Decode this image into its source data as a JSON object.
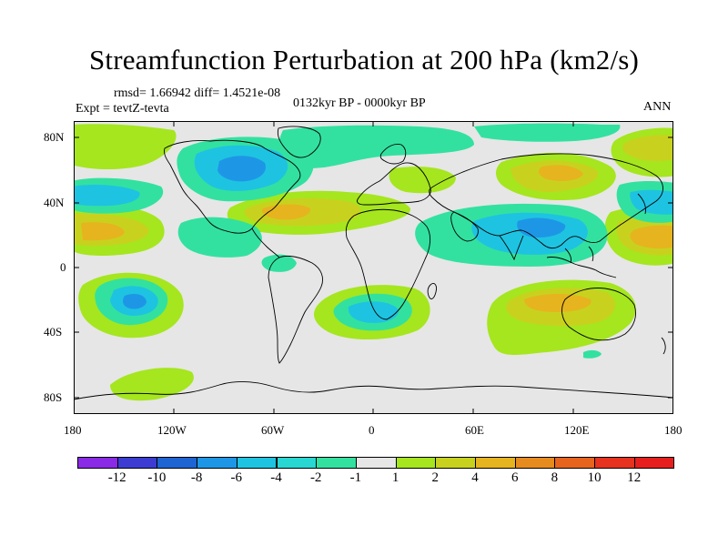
{
  "title": "Streamfunction Perturbation at 200 hPa (km2/s)",
  "stats": "rmsd= 1.66942 diff= 1.4521e-08",
  "experiment": "Expt = tevtZ-tevta",
  "period": "0132kyr BP - 0000kyr BP",
  "season": "ANN",
  "lat_labels": [
    "80N",
    "40N",
    "0",
    "40S",
    "80S"
  ],
  "lon_labels": [
    "180",
    "120W",
    "60W",
    "0",
    "60E",
    "120E",
    "180"
  ],
  "colorbar": {
    "labels": [
      "-12",
      "-10",
      "-8",
      "-6",
      "-4",
      "-2",
      "-1",
      "1",
      "2",
      "4",
      "6",
      "8",
      "10",
      "12"
    ],
    "colors": [
      "#8a2ae6",
      "#3c3cd2",
      "#1e64d2",
      "#1e96e6",
      "#1ec3e1",
      "#28d7d2",
      "#32e1a0",
      "#e6e6e6",
      "#a5e61e",
      "#c8d21e",
      "#e6b41e",
      "#e68c1e",
      "#e6641e",
      "#e6321e",
      "#e61e1e"
    ]
  },
  "field_colors": {
    "neutral": "#e6e6e6",
    "pos1": "#a5e61e",
    "pos2": "#c8d21e",
    "pos3": "#e6b41e",
    "neg1": "#32e1a0",
    "neg2": "#1ec3e1",
    "neg3": "#1e96e6"
  }
}
